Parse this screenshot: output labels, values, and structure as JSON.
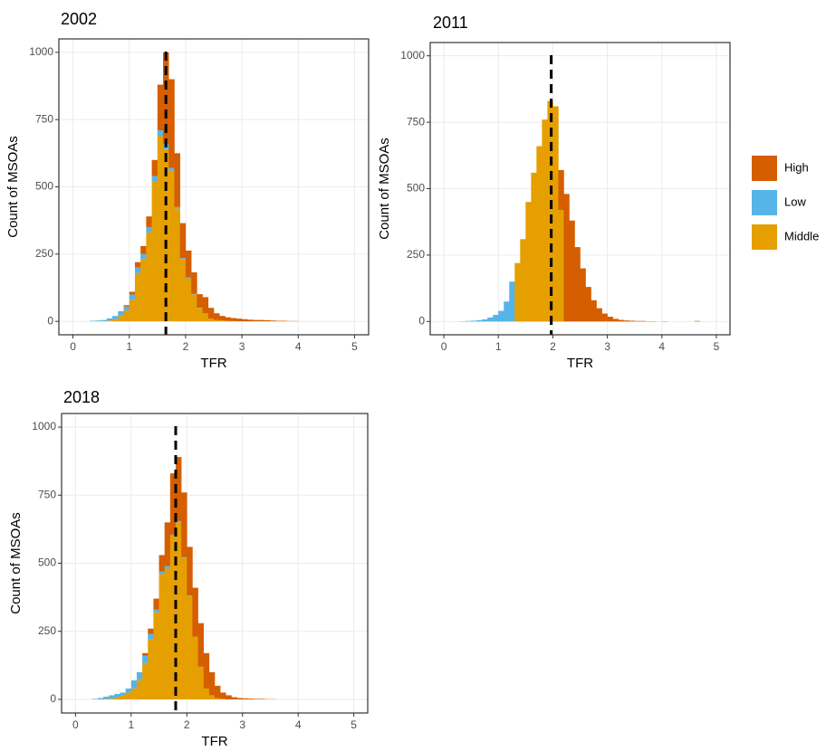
{
  "chart_data": [
    {
      "type": "histogram",
      "title": "2002",
      "x_label": "TFR",
      "y_label": "Count of MSOAs",
      "bins": [
        0.3,
        0.4,
        0.5,
        0.6,
        0.7,
        0.8,
        0.9,
        1.0,
        1.1,
        1.2,
        1.3,
        1.4,
        1.5,
        1.6,
        1.7,
        1.8,
        1.9,
        2.0,
        2.1,
        2.2,
        2.3,
        2.4,
        2.5,
        2.6,
        2.7,
        2.8,
        2.9,
        3.0,
        3.1,
        3.2,
        3.3,
        3.4,
        3.5,
        3.6,
        3.7,
        3.8,
        3.9,
        4.0,
        4.1,
        4.2,
        4.3,
        4.4,
        4.5,
        4.6,
        4.7
      ],
      "series": [
        {
          "name": "High",
          "color": "#d55e00",
          "values": [
            0,
            0,
            0,
            0,
            0,
            2,
            5,
            10,
            20,
            30,
            40,
            60,
            170,
            340,
            330,
            200,
            130,
            100,
            80,
            50,
            60,
            40,
            25,
            17,
            13,
            11,
            10,
            8,
            6,
            5,
            5,
            4,
            3,
            2,
            2,
            1,
            1,
            0,
            0,
            0,
            0,
            0,
            0,
            0
          ]
        },
        {
          "name": "Low",
          "color": "#56b4e9",
          "values": [
            2,
            3,
            4,
            8,
            12,
            15,
            15,
            20,
            20,
            20,
            20,
            20,
            20,
            20,
            10,
            5,
            5,
            3,
            2,
            1,
            0,
            0,
            0,
            0,
            0,
            0,
            0,
            0,
            0,
            0,
            0,
            0,
            0,
            0,
            0,
            0,
            0,
            0,
            0,
            0,
            0,
            0,
            0,
            0
          ]
        },
        {
          "name": "Middle",
          "color": "#e69f00",
          "values": [
            0,
            0,
            1,
            3,
            8,
            20,
            40,
            80,
            180,
            230,
            330,
            520,
            690,
            640,
            560,
            420,
            230,
            160,
            100,
            50,
            30,
            10,
            5,
            3,
            2,
            1,
            0,
            0,
            0,
            0,
            0,
            0,
            0,
            0,
            0,
            0,
            0,
            0,
            0,
            0,
            0,
            0,
            0,
            0
          ]
        }
      ],
      "vline": 1.65,
      "xlim": [
        -0.25,
        5.25
      ],
      "ylim": [
        -50,
        1050
      ],
      "xticks": [
        0,
        1,
        2,
        3,
        4,
        5
      ],
      "yticks": [
        0,
        250,
        500,
        750,
        1000
      ],
      "grid": true
    },
    {
      "type": "histogram",
      "title": "2011",
      "x_label": "TFR",
      "y_label": "Count of MSOAs",
      "bins": [
        0.3,
        0.4,
        0.5,
        0.6,
        0.7,
        0.8,
        0.9,
        1.0,
        1.1,
        1.2,
        1.3,
        1.4,
        1.5,
        1.6,
        1.7,
        1.8,
        1.9,
        2.0,
        2.1,
        2.2,
        2.3,
        2.4,
        2.5,
        2.6,
        2.7,
        2.8,
        2.9,
        3.0,
        3.1,
        3.2,
        3.3,
        3.4,
        3.5,
        3.6,
        3.7,
        3.8,
        3.9,
        4.0,
        4.1,
        4.2,
        4.3,
        4.4,
        4.5,
        4.6,
        4.7
      ],
      "series": [
        {
          "name": "High",
          "color": "#d55e00",
          "values": [
            0,
            0,
            0,
            0,
            0,
            0,
            0,
            0,
            0,
            0,
            0,
            0,
            0,
            0,
            0,
            0,
            0,
            0,
            150,
            480,
            380,
            280,
            200,
            130,
            80,
            50,
            30,
            18,
            10,
            6,
            4,
            3,
            2,
            2,
            1,
            1,
            0,
            1,
            0,
            0,
            0,
            0,
            0,
            2
          ]
        },
        {
          "name": "Low",
          "color": "#56b4e9",
          "values": [
            1,
            2,
            3,
            5,
            8,
            15,
            25,
            40,
            75,
            150,
            0,
            0,
            0,
            0,
            0,
            0,
            0,
            0,
            0,
            0,
            0,
            0,
            0,
            0,
            0,
            0,
            0,
            0,
            0,
            0,
            0,
            0,
            0,
            0,
            0,
            0,
            0,
            0,
            0,
            0,
            0,
            0,
            0,
            0
          ]
        },
        {
          "name": "Middle",
          "color": "#e69f00",
          "values": [
            0,
            0,
            0,
            0,
            0,
            0,
            0,
            0,
            0,
            0,
            220,
            310,
            450,
            560,
            660,
            760,
            830,
            810,
            420,
            0,
            0,
            0,
            0,
            0,
            0,
            0,
            0,
            0,
            0,
            0,
            0,
            0,
            0,
            0,
            0,
            0,
            0,
            0,
            0,
            0,
            0,
            0,
            0,
            0
          ]
        }
      ],
      "vline": 1.97,
      "xlim": [
        -0.25,
        5.25
      ],
      "ylim": [
        -50,
        1050
      ],
      "xticks": [
        0,
        1,
        2,
        3,
        4,
        5
      ],
      "yticks": [
        0,
        250,
        500,
        750,
        1000
      ],
      "grid": true
    },
    {
      "type": "histogram",
      "title": "2018",
      "x_label": "TFR",
      "y_label": "Count of MSOAs",
      "bins": [
        0.3,
        0.4,
        0.5,
        0.6,
        0.7,
        0.8,
        0.9,
        1.0,
        1.1,
        1.2,
        1.3,
        1.4,
        1.5,
        1.6,
        1.7,
        1.8,
        1.9,
        2.0,
        2.1,
        2.2,
        2.3,
        2.4,
        2.5,
        2.6,
        2.7,
        2.8,
        2.9,
        3.0,
        3.1,
        3.2,
        3.3,
        3.4,
        3.5,
        3.6,
        3.7,
        3.8,
        3.9,
        4.0,
        4.1,
        4.2,
        4.3,
        4.4,
        4.5,
        4.6,
        4.7
      ],
      "series": [
        {
          "name": "High",
          "color": "#d55e00",
          "values": [
            0,
            0,
            0,
            0,
            0,
            0,
            0,
            0,
            0,
            10,
            20,
            40,
            60,
            160,
            225,
            235,
            237,
            178,
            180,
            160,
            130,
            85,
            45,
            23,
            15,
            8,
            5,
            4,
            3,
            2,
            2,
            1,
            1,
            0,
            0,
            0,
            0,
            0,
            0,
            0,
            0,
            0,
            0,
            0
          ]
        },
        {
          "name": "Low",
          "color": "#56b4e9",
          "values": [
            2,
            5,
            8,
            12,
            12,
            10,
            15,
            30,
            30,
            30,
            20,
            10,
            10,
            10,
            5,
            5,
            3,
            2,
            0,
            0,
            0,
            0,
            0,
            0,
            0,
            0,
            0,
            0,
            0,
            0,
            0,
            0,
            0,
            0,
            0,
            0,
            0,
            0,
            0,
            0,
            0,
            0,
            0,
            0
          ]
        },
        {
          "name": "Middle",
          "color": "#e69f00",
          "values": [
            0,
            0,
            2,
            3,
            8,
            15,
            25,
            40,
            70,
            130,
            220,
            320,
            460,
            480,
            600,
            650,
            520,
            380,
            230,
            120,
            40,
            15,
            5,
            2,
            0,
            0,
            0,
            0,
            0,
            0,
            0,
            0,
            0,
            0,
            0,
            0,
            0,
            0,
            0,
            0,
            0,
            0,
            0,
            0
          ]
        }
      ],
      "vline": 1.8,
      "xlim": [
        -0.25,
        5.25
      ],
      "ylim": [
        -50,
        1050
      ],
      "xticks": [
        0,
        1,
        2,
        3,
        4,
        5
      ],
      "yticks": [
        0,
        250,
        500,
        750,
        1000
      ],
      "grid": true
    }
  ]
}
